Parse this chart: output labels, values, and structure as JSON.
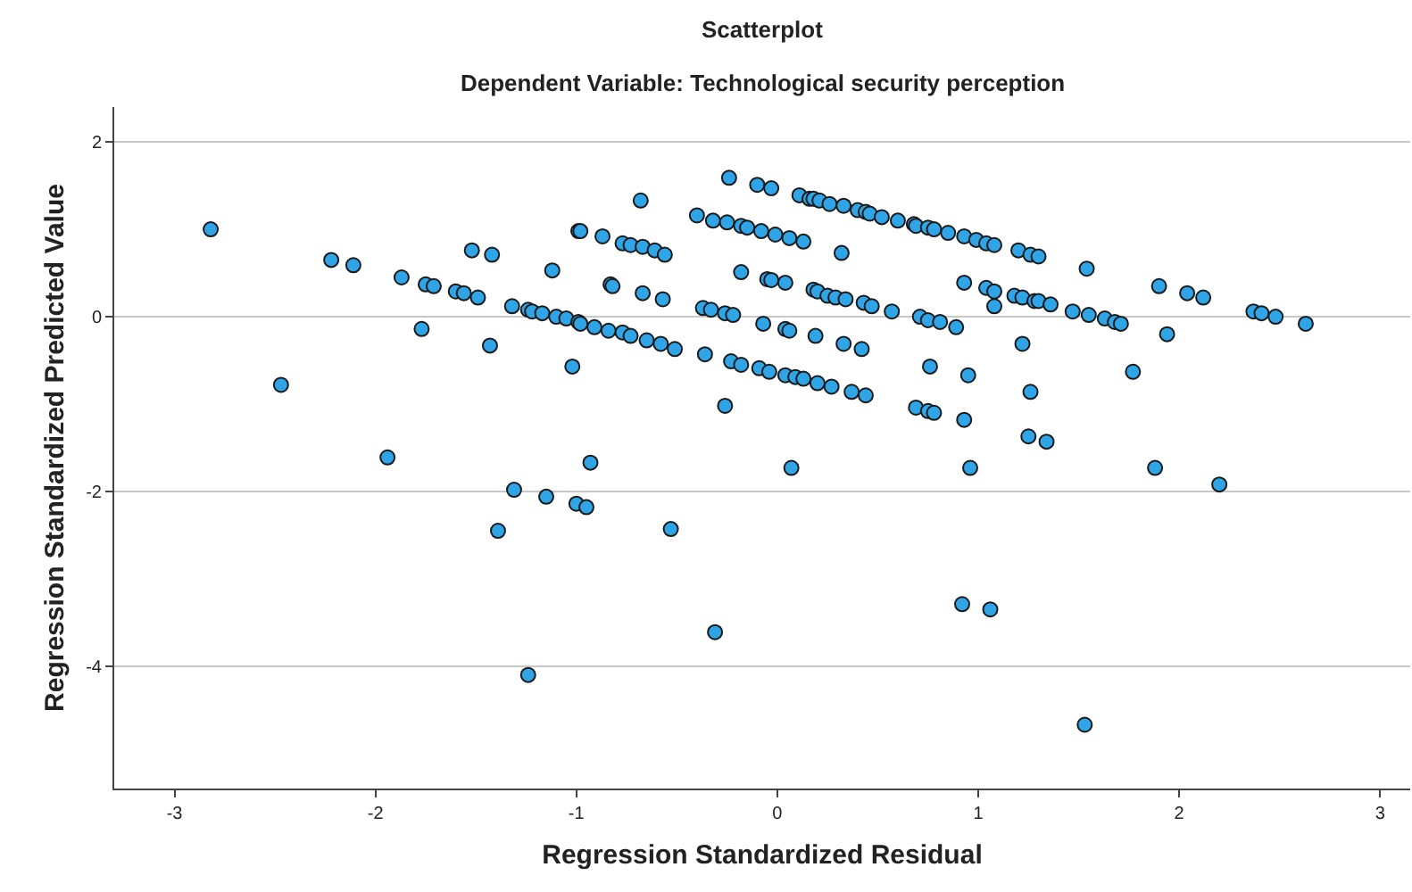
{
  "chart_data": {
    "type": "scatter",
    "title": "Scatterplot",
    "subtitle": "Dependent Variable: Technological security perception",
    "xlabel": "Regression Standardized Residual",
    "ylabel": "Regression Standardized Predicted Value",
    "xlim": [
      -3.3,
      3.15
    ],
    "ylim": [
      -5.4,
      2.4
    ],
    "xticks": [
      -3,
      -2,
      -1,
      0,
      1,
      2,
      3
    ],
    "yticks": [
      -4,
      -2,
      0,
      2
    ],
    "grid": "y",
    "marker": "circle",
    "series": [
      {
        "color": "#2fa4e7",
        "x": [
          -2.82,
          -2.47,
          -2.22,
          -2.11,
          -1.94,
          -1.87,
          -1.75,
          -1.71,
          -1.77,
          -1.6,
          -1.56,
          -1.49,
          -1.52,
          -1.42,
          -1.43,
          -1.32,
          -1.24,
          -1.22,
          -1.17,
          -1.1,
          -1.05,
          -0.99,
          -1.12,
          -0.99,
          -0.98,
          -0.91,
          -0.84,
          -0.77,
          -0.73,
          -0.65,
          -0.58,
          -0.51,
          -1.02,
          -0.68,
          -0.98,
          -0.87,
          -0.77,
          -0.73,
          -0.67,
          -0.61,
          -0.56,
          -0.83,
          -0.82,
          -0.67,
          -0.57,
          -0.36,
          -0.26,
          -0.24,
          -0.1,
          -0.03,
          -0.4,
          -0.32,
          -0.25,
          -0.18,
          -0.15,
          -0.08,
          -0.01,
          0.06,
          0.13,
          0.32,
          -0.18,
          -0.05,
          -0.03,
          0.04,
          -0.37,
          -0.33,
          -0.26,
          -0.22,
          -0.07,
          0.04,
          0.06,
          0.19,
          0.33,
          0.42,
          -0.23,
          -0.18,
          -0.09,
          -0.04,
          0.04,
          0.09,
          0.13,
          0.2,
          0.27,
          0.37,
          0.44,
          0.11,
          0.16,
          0.18,
          0.21,
          0.26,
          0.33,
          0.4,
          0.44,
          0.46,
          0.52,
          0.6,
          0.68,
          0.69,
          0.75,
          0.78,
          0.85,
          0.93,
          0.99,
          1.04,
          1.08,
          1.2,
          1.26,
          1.3,
          1.54,
          0.18,
          0.2,
          0.25,
          0.29,
          0.34,
          0.43,
          0.47,
          0.57,
          0.71,
          0.75,
          0.81,
          0.89,
          0.93,
          1.04,
          1.08,
          1.08,
          1.18,
          1.22,
          1.28,
          1.3,
          1.36,
          1.47,
          1.55,
          1.63,
          1.68,
          1.71,
          1.9,
          2.04,
          2.12,
          1.94,
          2.37,
          2.41,
          2.48,
          2.63,
          1.22,
          1.77,
          0.76,
          0.95,
          1.26,
          0.69,
          0.75,
          0.78,
          0.93,
          -1.31,
          -1.15,
          -1.0,
          -0.95,
          -1.39,
          -0.93,
          -0.53,
          -0.31,
          -1.24,
          0.07,
          0.96,
          1.25,
          1.34,
          1.88,
          2.2,
          0.92,
          1.06,
          1.53
        ],
        "values": [
          1.0,
          -0.78,
          0.65,
          0.59,
          -1.61,
          0.45,
          0.37,
          0.35,
          -0.14,
          0.29,
          0.27,
          0.22,
          0.76,
          0.71,
          -0.33,
          0.12,
          0.08,
          0.06,
          0.04,
          0.0,
          -0.02,
          -0.06,
          0.53,
          0.98,
          -0.08,
          -0.12,
          -0.16,
          -0.18,
          -0.22,
          -0.27,
          -0.31,
          -0.37,
          -0.57,
          1.33,
          0.98,
          0.92,
          0.84,
          0.82,
          0.8,
          0.76,
          0.71,
          0.37,
          0.35,
          0.27,
          0.2,
          -0.43,
          -1.02,
          1.59,
          1.51,
          1.47,
          1.16,
          1.1,
          1.08,
          1.04,
          1.02,
          0.98,
          0.94,
          0.9,
          0.86,
          0.73,
          0.51,
          0.43,
          0.42,
          0.39,
          0.1,
          0.08,
          0.04,
          0.02,
          -0.08,
          -0.14,
          -0.16,
          -0.22,
          -0.31,
          -0.37,
          -0.51,
          -0.55,
          -0.59,
          -0.63,
          -0.67,
          -0.69,
          -0.71,
          -0.76,
          -0.8,
          -0.86,
          -0.9,
          1.39,
          1.35,
          1.35,
          1.33,
          1.29,
          1.27,
          1.22,
          1.2,
          1.18,
          1.14,
          1.1,
          1.06,
          1.04,
          1.02,
          1.0,
          0.96,
          0.92,
          0.88,
          0.84,
          0.82,
          0.76,
          0.71,
          0.69,
          0.55,
          0.31,
          0.29,
          0.24,
          0.22,
          0.2,
          0.16,
          0.12,
          0.06,
          0.0,
          -0.04,
          -0.06,
          -0.12,
          0.39,
          0.33,
          0.29,
          0.12,
          0.24,
          0.22,
          0.18,
          0.18,
          0.14,
          0.06,
          0.02,
          -0.02,
          -0.06,
          -0.08,
          0.35,
          0.27,
          0.22,
          -0.2,
          0.06,
          0.04,
          0.0,
          -0.08,
          -0.31,
          -0.63,
          -0.57,
          -0.67,
          -0.86,
          -1.04,
          -1.08,
          -1.1,
          -1.18,
          -1.98,
          -2.06,
          -2.14,
          -2.18,
          -2.45,
          -1.67,
          -2.43,
          -3.61,
          -4.1,
          -1.73,
          -1.73,
          -1.37,
          -1.43,
          -1.73,
          -1.92,
          -3.29,
          -3.35,
          -4.67
        ]
      }
    ]
  }
}
